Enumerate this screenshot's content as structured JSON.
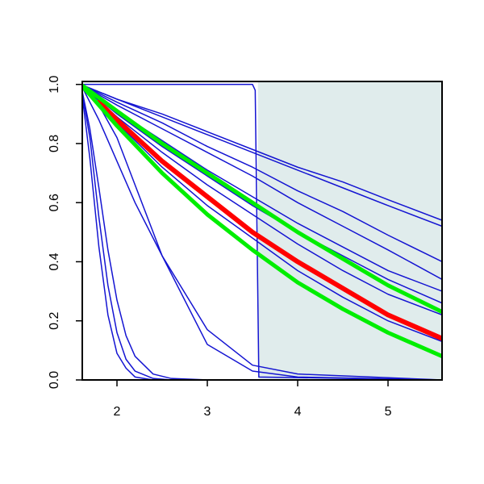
{
  "chart_data": {
    "type": "line",
    "xlim": [
      1.616,
      5.598
    ],
    "ylim": [
      0,
      1.01
    ],
    "xticks": [
      2,
      3,
      4,
      5
    ],
    "yticks": [
      {
        "value": 0,
        "label": "0.0"
      },
      0.2,
      0.4,
      0.6,
      0.8,
      {
        "value": 1,
        "label": "1.0"
      }
    ],
    "shade_from": 3.56,
    "shade_color": "#e0ecec",
    "series": [
      {
        "color": "#1414d2",
        "line_width": 1.5,
        "x": [
          1.6,
          2.0,
          2.5,
          3.0,
          3.5,
          4.0,
          4.5,
          5.0,
          5.6
        ],
        "values": [
          1,
          0.95,
          0.9,
          0.84,
          0.78,
          0.72,
          0.67,
          0.61,
          0.54
        ]
      },
      {
        "color": "#1414d2",
        "line_width": 1.5,
        "x": [
          1.6,
          2.0,
          2.5,
          3.0,
          3.5,
          4.0,
          4.5,
          5.0,
          5.6
        ],
        "values": [
          1,
          0.95,
          0.89,
          0.83,
          0.77,
          0.71,
          0.65,
          0.59,
          0.52
        ]
      },
      {
        "color": "#1414d2",
        "line_width": 1.5,
        "x": [
          1.6,
          2.0,
          2.5,
          3.0,
          3.5,
          4.0,
          4.5,
          5.0,
          5.6
        ],
        "values": [
          1,
          0.94,
          0.87,
          0.79,
          0.72,
          0.64,
          0.57,
          0.49,
          0.4
        ]
      },
      {
        "color": "#1414d2",
        "line_width": 1.5,
        "x": [
          1.6,
          2.0,
          2.5,
          3.0,
          3.5,
          4.0,
          4.5,
          5.0,
          5.6
        ],
        "values": [
          1,
          0.93,
          0.85,
          0.77,
          0.69,
          0.6,
          0.52,
          0.44,
          0.34
        ]
      },
      {
        "color": "#1414d2",
        "line_width": 1.5,
        "x": [
          1.6,
          2.0,
          2.5,
          3.0,
          3.5,
          4.0,
          4.5,
          5.0,
          5.6
        ],
        "values": [
          1,
          0.91,
          0.81,
          0.71,
          0.62,
          0.53,
          0.45,
          0.37,
          0.3
        ]
      },
      {
        "color": "#1414d2",
        "line_width": 1.5,
        "x": [
          1.6,
          2.0,
          2.5,
          3.0,
          3.5,
          4.0,
          4.5,
          5.0,
          5.6
        ],
        "values": [
          1,
          0.9,
          0.79,
          0.69,
          0.59,
          0.5,
          0.42,
          0.34,
          0.26
        ]
      },
      {
        "color": "#1414d2",
        "line_width": 1.5,
        "x": [
          1.6,
          2.0,
          2.5,
          3.0,
          3.5,
          4.0,
          4.5,
          5.0,
          5.6
        ],
        "values": [
          1,
          0.89,
          0.77,
          0.66,
          0.56,
          0.46,
          0.37,
          0.29,
          0.22
        ]
      },
      {
        "color": "#1414d2",
        "line_width": 1.5,
        "x": [
          1.6,
          2.0,
          2.5,
          3.0,
          3.5,
          4.0,
          4.5,
          5.0,
          5.6
        ],
        "values": [
          1,
          0.87,
          0.72,
          0.59,
          0.48,
          0.37,
          0.28,
          0.2,
          0.13
        ]
      },
      {
        "color": "#1414d2",
        "line_width": 1.5,
        "x": [
          1.6,
          1.7,
          1.8,
          1.9,
          2.0,
          2.1,
          2.2,
          2.4,
          2.6,
          3.0,
          5.6
        ],
        "values": [
          1,
          0.75,
          0.45,
          0.22,
          0.09,
          0.04,
          0.01,
          0,
          0,
          0,
          0
        ]
      },
      {
        "color": "#1414d2",
        "line_width": 1.5,
        "x": [
          1.6,
          1.7,
          1.8,
          1.9,
          2.0,
          2.1,
          2.2,
          2.4,
          2.6,
          3.0,
          5.6
        ],
        "values": [
          1,
          0.82,
          0.55,
          0.32,
          0.16,
          0.07,
          0.03,
          0.005,
          0,
          0,
          0
        ]
      },
      {
        "color": "#1414d2",
        "line_width": 1.5,
        "x": [
          1.6,
          1.7,
          1.8,
          1.9,
          2.0,
          2.1,
          2.2,
          2.4,
          2.6,
          3.0,
          5.6
        ],
        "values": [
          1,
          0.85,
          0.65,
          0.44,
          0.27,
          0.15,
          0.08,
          0.02,
          0.005,
          0,
          0
        ]
      },
      {
        "color": "#1414d2",
        "line_width": 1.5,
        "x": [
          1.6,
          1.8,
          2.0,
          2.2,
          2.5,
          3.0,
          3.5,
          4.0,
          5.6
        ],
        "values": [
          1,
          0.88,
          0.74,
          0.6,
          0.42,
          0.17,
          0.05,
          0.02,
          0
        ]
      },
      {
        "color": "#1414d2",
        "line_width": 1.5,
        "x": [
          1.6,
          1.8,
          2.0,
          2.2,
          2.5,
          3.0,
          3.5,
          4.0,
          5.6
        ],
        "values": [
          1,
          0.93,
          0.82,
          0.66,
          0.42,
          0.12,
          0.03,
          0.01,
          0
        ]
      },
      {
        "color": "#1414d2",
        "line_width": 1.5,
        "x": [
          1.6,
          3.5,
          3.53,
          3.55,
          3.57,
          5.6
        ],
        "values": [
          1,
          1,
          0.98,
          0.5,
          0.01,
          0
        ]
      },
      {
        "color": "#ff0000",
        "line_width": 6,
        "x": [
          1.8,
          2.0,
          2.5,
          3.0,
          3.5,
          4.0,
          4.5,
          5.0,
          5.6
        ],
        "values": [
          0.94,
          0.88,
          0.74,
          0.62,
          0.5,
          0.4,
          0.31,
          0.22,
          0.14
        ]
      },
      {
        "color": "#00ee00",
        "line_width": 5,
        "x": [
          1.6,
          2.0,
          2.5,
          3.0,
          3.5,
          4.0,
          4.5,
          5.0,
          5.6
        ],
        "values": [
          1,
          0.91,
          0.8,
          0.7,
          0.6,
          0.5,
          0.41,
          0.32,
          0.23
        ]
      },
      {
        "color": "#00ee00",
        "line_width": 5,
        "x": [
          1.6,
          2.0,
          2.5,
          3.0,
          3.5,
          4.0,
          4.5,
          5.0,
          5.6
        ],
        "values": [
          1,
          0.86,
          0.7,
          0.56,
          0.44,
          0.33,
          0.24,
          0.16,
          0.08
        ]
      }
    ]
  }
}
